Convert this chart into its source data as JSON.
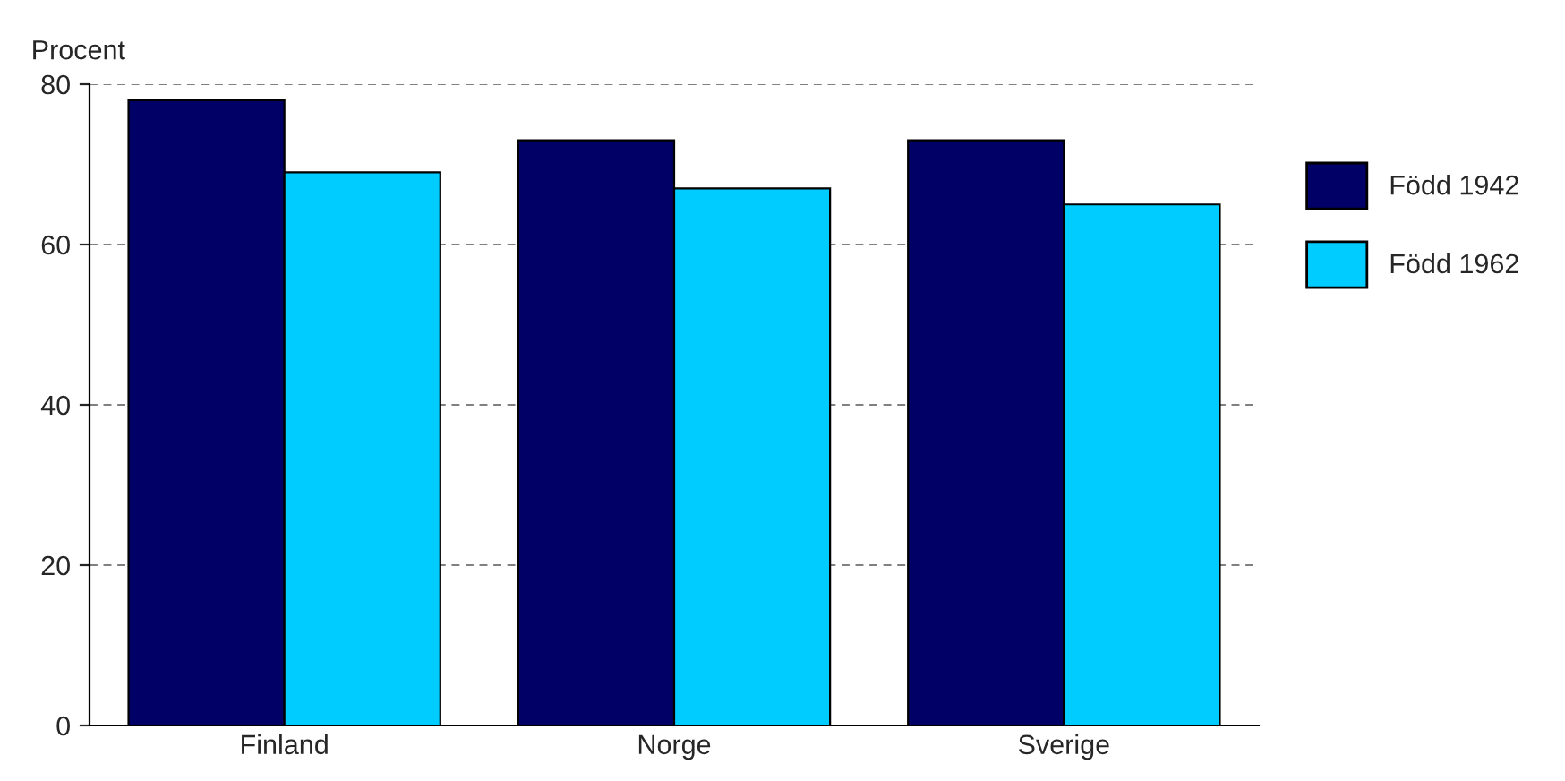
{
  "chart_data": {
    "type": "bar",
    "ylabel": "Procent",
    "categories": [
      "Finland",
      "Norge",
      "Sverige"
    ],
    "series": [
      {
        "name": "Född 1942",
        "color": "#000066",
        "values": [
          78,
          73,
          73
        ]
      },
      {
        "name": "Född 1962",
        "color": "#00ccff",
        "values": [
          69,
          67,
          65
        ]
      }
    ],
    "ylim": [
      0,
      80
    ],
    "yticks": [
      0,
      20,
      40,
      60,
      80
    ],
    "grid": "y",
    "legend": "right"
  }
}
